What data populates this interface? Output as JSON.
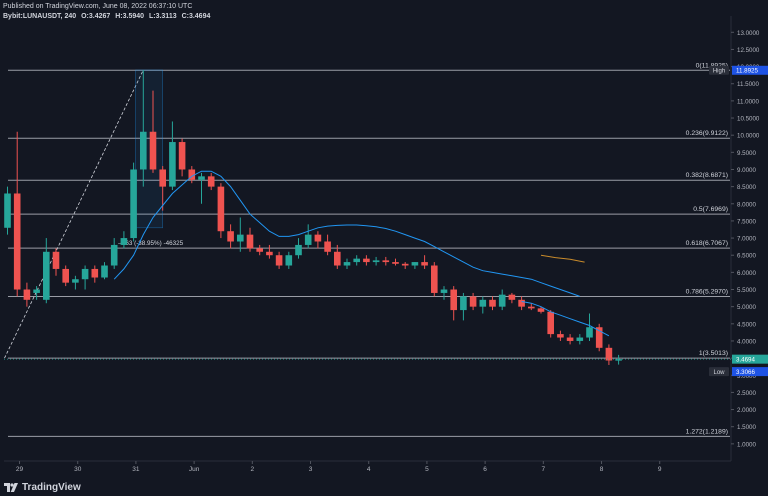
{
  "header": {
    "published": "Published on TradingView.com, June 08, 2022 06:37:10 UTC",
    "symbol": "Bybit:LUNAUSDT, 240",
    "open": "O:3.4267",
    "high": "H:3.5940",
    "low": "L:3.3113",
    "close": "C:3.4694"
  },
  "footer": {
    "logo_text": "TradingView"
  },
  "colors": {
    "up": "#26a69a",
    "down": "#ef5350",
    "ma": "#2196f3",
    "fib": "#b2b5be",
    "bg": "#131722"
  },
  "chart_data": {
    "type": "candlestick",
    "title": "",
    "ylim": [
      0.5,
      13.3
    ],
    "y_ticks": [
      "1.0000",
      "1.5000",
      "2.0000",
      "2.5000",
      "3.0000",
      "3.5000",
      "4.0000",
      "4.5000",
      "5.0000",
      "5.5000",
      "6.0000",
      "6.5000",
      "7.0000",
      "7.5000",
      "8.0000",
      "8.5000",
      "9.0000",
      "9.5000",
      "10.0000",
      "10.5000",
      "11.0000",
      "11.5000",
      "12.0000",
      "12.5000",
      "13.0000"
    ],
    "x_ticks": [
      {
        "label": "29",
        "t": 1.6
      },
      {
        "label": "30",
        "t": 7.6
      },
      {
        "label": "31",
        "t": 13.6
      },
      {
        "label": "Jun",
        "t": 19.6
      },
      {
        "label": "2",
        "t": 25.6
      },
      {
        "label": "3",
        "t": 31.6
      },
      {
        "label": "4",
        "t": 37.6
      },
      {
        "label": "5",
        "t": 43.6
      },
      {
        "label": "6",
        "t": 49.6
      },
      {
        "label": "7",
        "t": 55.6
      },
      {
        "label": "8",
        "t": 61.6
      },
      {
        "label": "9",
        "t": 67.6
      }
    ],
    "fib_levels": [
      {
        "label": "0(11.8925)",
        "value": 11.8925
      },
      {
        "label": "0.236(9.9122)",
        "value": 9.9122
      },
      {
        "label": "0.382(8.6871)",
        "value": 8.6871
      },
      {
        "label": "0.5(7.6969)",
        "value": 7.6969
      },
      {
        "label": "0.618(6.7067)",
        "value": 6.7067
      },
      {
        "label": "0.786(5.2970)",
        "value": 5.297
      },
      {
        "label": "1(3.5013)",
        "value": 3.5013
      },
      {
        "label": "1.272(1.2189)",
        "value": 1.2189
      }
    ],
    "high_marker": {
      "label": "High",
      "value_label": "11.8925",
      "value": 11.8925
    },
    "low_marker": {
      "label": "Low",
      "value_label": "3.3066",
      "value": 3.3066
    },
    "last_price": {
      "label": "3.4694",
      "value": 3.4694
    },
    "measure_label": "-4.63 (-38.95%) -46325",
    "candles": [
      {
        "t": 0,
        "o": 7.3,
        "h": 8.5,
        "l": 7.1,
        "c": 8.3
      },
      {
        "t": 1,
        "o": 8.3,
        "h": 10.1,
        "l": 5.3,
        "c": 5.5
      },
      {
        "t": 2,
        "o": 5.5,
        "h": 5.7,
        "l": 5.0,
        "c": 5.2
      },
      {
        "t": 3,
        "o": 5.4,
        "h": 5.6,
        "l": 5.2,
        "c": 5.5
      },
      {
        "t": 4,
        "o": 5.2,
        "h": 7.0,
        "l": 5.1,
        "c": 6.6
      },
      {
        "t": 5,
        "o": 6.6,
        "h": 6.7,
        "l": 5.9,
        "c": 6.1
      },
      {
        "t": 6,
        "o": 6.1,
        "h": 6.2,
        "l": 5.6,
        "c": 5.7
      },
      {
        "t": 7,
        "o": 5.7,
        "h": 5.9,
        "l": 5.5,
        "c": 5.8
      },
      {
        "t": 8,
        "o": 5.8,
        "h": 6.2,
        "l": 5.5,
        "c": 6.1
      },
      {
        "t": 9,
        "o": 6.1,
        "h": 6.2,
        "l": 5.7,
        "c": 5.85
      },
      {
        "t": 10,
        "o": 5.85,
        "h": 6.3,
        "l": 5.8,
        "c": 6.2
      },
      {
        "t": 11,
        "o": 6.2,
        "h": 7.0,
        "l": 6.1,
        "c": 6.8
      },
      {
        "t": 12,
        "o": 6.8,
        "h": 7.2,
        "l": 6.7,
        "c": 7.0
      },
      {
        "t": 13,
        "o": 7.0,
        "h": 9.2,
        "l": 6.9,
        "c": 9.0
      },
      {
        "t": 14,
        "o": 9.0,
        "h": 11.9,
        "l": 8.5,
        "c": 10.1
      },
      {
        "t": 15,
        "o": 10.1,
        "h": 11.3,
        "l": 8.9,
        "c": 9.0
      },
      {
        "t": 16,
        "o": 9.0,
        "h": 9.1,
        "l": 7.8,
        "c": 8.5
      },
      {
        "t": 17,
        "o": 8.5,
        "h": 10.4,
        "l": 8.4,
        "c": 9.8
      },
      {
        "t": 18,
        "o": 9.8,
        "h": 9.9,
        "l": 8.8,
        "c": 9.0
      },
      {
        "t": 19,
        "o": 9.0,
        "h": 9.1,
        "l": 8.6,
        "c": 8.7
      },
      {
        "t": 20,
        "o": 8.7,
        "h": 8.9,
        "l": 8.0,
        "c": 8.8
      },
      {
        "t": 21,
        "o": 8.8,
        "h": 8.9,
        "l": 8.4,
        "c": 8.5
      },
      {
        "t": 22,
        "o": 8.5,
        "h": 8.6,
        "l": 7.0,
        "c": 7.2
      },
      {
        "t": 23,
        "o": 7.2,
        "h": 7.4,
        "l": 6.7,
        "c": 6.9
      },
      {
        "t": 24,
        "o": 6.9,
        "h": 7.6,
        "l": 6.6,
        "c": 7.1
      },
      {
        "t": 25,
        "o": 7.1,
        "h": 7.3,
        "l": 6.6,
        "c": 6.7
      },
      {
        "t": 26,
        "o": 6.7,
        "h": 6.8,
        "l": 6.5,
        "c": 6.6
      },
      {
        "t": 27,
        "o": 6.6,
        "h": 6.8,
        "l": 6.4,
        "c": 6.5
      },
      {
        "t": 28,
        "o": 6.5,
        "h": 6.6,
        "l": 6.1,
        "c": 6.2
      },
      {
        "t": 29,
        "o": 6.2,
        "h": 6.6,
        "l": 6.1,
        "c": 6.5
      },
      {
        "t": 30,
        "o": 6.5,
        "h": 7.0,
        "l": 6.4,
        "c": 6.8
      },
      {
        "t": 31,
        "o": 6.8,
        "h": 7.4,
        "l": 6.7,
        "c": 7.1
      },
      {
        "t": 32,
        "o": 7.1,
        "h": 7.2,
        "l": 6.7,
        "c": 6.9
      },
      {
        "t": 33,
        "o": 6.9,
        "h": 7.1,
        "l": 6.5,
        "c": 6.6
      },
      {
        "t": 34,
        "o": 6.6,
        "h": 6.8,
        "l": 6.1,
        "c": 6.2
      },
      {
        "t": 35,
        "o": 6.2,
        "h": 6.4,
        "l": 6.1,
        "c": 6.3
      },
      {
        "t": 36,
        "o": 6.3,
        "h": 6.5,
        "l": 6.2,
        "c": 6.4
      },
      {
        "t": 37,
        "o": 6.4,
        "h": 6.5,
        "l": 6.2,
        "c": 6.3
      },
      {
        "t": 38,
        "o": 6.3,
        "h": 6.45,
        "l": 6.2,
        "c": 6.35
      },
      {
        "t": 39,
        "o": 6.35,
        "h": 6.45,
        "l": 6.2,
        "c": 6.3
      },
      {
        "t": 40,
        "o": 6.3,
        "h": 6.4,
        "l": 6.2,
        "c": 6.25
      },
      {
        "t": 41,
        "o": 6.25,
        "h": 6.3,
        "l": 6.1,
        "c": 6.2
      },
      {
        "t": 42,
        "o": 6.2,
        "h": 6.3,
        "l": 6.1,
        "c": 6.3
      },
      {
        "t": 43,
        "o": 6.3,
        "h": 6.5,
        "l": 6.1,
        "c": 6.2
      },
      {
        "t": 44,
        "o": 6.2,
        "h": 6.3,
        "l": 5.3,
        "c": 5.4
      },
      {
        "t": 45,
        "o": 5.4,
        "h": 5.6,
        "l": 5.2,
        "c": 5.5
      },
      {
        "t": 46,
        "o": 5.5,
        "h": 5.6,
        "l": 4.6,
        "c": 4.9
      },
      {
        "t": 47,
        "o": 4.9,
        "h": 5.4,
        "l": 4.6,
        "c": 5.3
      },
      {
        "t": 48,
        "o": 5.3,
        "h": 5.4,
        "l": 4.9,
        "c": 5.0
      },
      {
        "t": 49,
        "o": 5.0,
        "h": 5.3,
        "l": 4.8,
        "c": 5.2
      },
      {
        "t": 50,
        "o": 5.2,
        "h": 5.3,
        "l": 4.9,
        "c": 5.0
      },
      {
        "t": 51,
        "o": 5.0,
        "h": 5.5,
        "l": 4.9,
        "c": 5.35
      },
      {
        "t": 52,
        "o": 5.35,
        "h": 5.4,
        "l": 5.1,
        "c": 5.2
      },
      {
        "t": 53,
        "o": 5.2,
        "h": 5.3,
        "l": 4.9,
        "c": 5.0
      },
      {
        "t": 54,
        "o": 5.0,
        "h": 5.1,
        "l": 4.9,
        "c": 4.95
      },
      {
        "t": 55,
        "o": 4.95,
        "h": 5.0,
        "l": 4.8,
        "c": 4.85
      },
      {
        "t": 56,
        "o": 4.85,
        "h": 4.9,
        "l": 4.1,
        "c": 4.2
      },
      {
        "t": 57,
        "o": 4.2,
        "h": 4.3,
        "l": 4.0,
        "c": 4.1
      },
      {
        "t": 58,
        "o": 4.1,
        "h": 4.2,
        "l": 3.9,
        "c": 4.0
      },
      {
        "t": 59,
        "o": 4.0,
        "h": 4.2,
        "l": 3.9,
        "c": 4.1
      },
      {
        "t": 60,
        "o": 4.1,
        "h": 4.8,
        "l": 4.0,
        "c": 4.4
      },
      {
        "t": 61,
        "o": 4.4,
        "h": 4.5,
        "l": 3.7,
        "c": 3.8
      },
      {
        "t": 62,
        "o": 3.8,
        "h": 3.9,
        "l": 3.3,
        "c": 3.43
      },
      {
        "t": 63,
        "o": 3.4267,
        "h": 3.594,
        "l": 3.3113,
        "c": 3.4694
      }
    ],
    "ma_series": {
      "name": "",
      "points": [
        {
          "t": 11,
          "v": 5.8
        },
        {
          "t": 12,
          "v": 6.1
        },
        {
          "t": 13,
          "v": 6.5
        },
        {
          "t": 14,
          "v": 7.1
        },
        {
          "t": 15,
          "v": 7.6
        },
        {
          "t": 16,
          "v": 7.95
        },
        {
          "t": 17,
          "v": 8.3
        },
        {
          "t": 18,
          "v": 8.55
        },
        {
          "t": 19,
          "v": 8.8
        },
        {
          "t": 20,
          "v": 8.95
        },
        {
          "t": 21,
          "v": 8.95
        },
        {
          "t": 22,
          "v": 8.8
        },
        {
          "t": 23,
          "v": 8.5
        },
        {
          "t": 24,
          "v": 8.1
        },
        {
          "t": 25,
          "v": 7.7
        },
        {
          "t": 26,
          "v": 7.45
        },
        {
          "t": 27,
          "v": 7.2
        },
        {
          "t": 28,
          "v": 7.05
        },
        {
          "t": 29,
          "v": 7.05
        },
        {
          "t": 30,
          "v": 7.1
        },
        {
          "t": 31,
          "v": 7.2
        },
        {
          "t": 32,
          "v": 7.3
        },
        {
          "t": 33,
          "v": 7.35
        },
        {
          "t": 34,
          "v": 7.37
        },
        {
          "t": 35,
          "v": 7.38
        },
        {
          "t": 36,
          "v": 7.38
        },
        {
          "t": 37,
          "v": 7.36
        },
        {
          "t": 38,
          "v": 7.33
        },
        {
          "t": 39,
          "v": 7.28
        },
        {
          "t": 40,
          "v": 7.2
        },
        {
          "t": 41,
          "v": 7.1
        },
        {
          "t": 42,
          "v": 7.0
        },
        {
          "t": 43,
          "v": 6.9
        },
        {
          "t": 44,
          "v": 6.75
        },
        {
          "t": 45,
          "v": 6.6
        },
        {
          "t": 46,
          "v": 6.45
        },
        {
          "t": 47,
          "v": 6.3
        },
        {
          "t": 48,
          "v": 6.15
        },
        {
          "t": 49,
          "v": 6.05
        },
        {
          "t": 50,
          "v": 6.0
        },
        {
          "t": 51,
          "v": 5.95
        },
        {
          "t": 52,
          "v": 5.9
        },
        {
          "t": 53,
          "v": 5.85
        },
        {
          "t": 54,
          "v": 5.8
        },
        {
          "t": 55,
          "v": 5.7
        },
        {
          "t": 56,
          "v": 5.6
        },
        {
          "t": 57,
          "v": 5.5
        },
        {
          "t": 58,
          "v": 5.4
        },
        {
          "t": 59,
          "v": 5.3
        }
      ]
    },
    "ma_series_2": {
      "name": "",
      "points": [
        {
          "t": 53,
          "v": 5.15
        },
        {
          "t": 54,
          "v": 5.1
        },
        {
          "t": 55,
          "v": 5.0
        },
        {
          "t": 56,
          "v": 4.85
        },
        {
          "t": 57,
          "v": 4.75
        },
        {
          "t": 58,
          "v": 4.65
        },
        {
          "t": 59,
          "v": 4.55
        },
        {
          "t": 60,
          "v": 4.45
        },
        {
          "t": 61,
          "v": 4.3
        },
        {
          "t": 62,
          "v": 4.15
        }
      ]
    },
    "orange_series": {
      "name": "",
      "points": [
        {
          "t": 55,
          "v": 6.5
        },
        {
          "t": 56.5,
          "v": 6.43
        },
        {
          "t": 58,
          "v": 6.38
        },
        {
          "t": 59.5,
          "v": 6.3
        }
      ]
    },
    "dashed_trend": {
      "from": {
        "t": 0,
        "v": 3.5
      },
      "to": {
        "t": 14,
        "v": 11.9
      }
    },
    "measure_box": {
      "t1": 13.2,
      "t2": 16.0,
      "v1": 7.3,
      "v2": 11.9
    }
  }
}
